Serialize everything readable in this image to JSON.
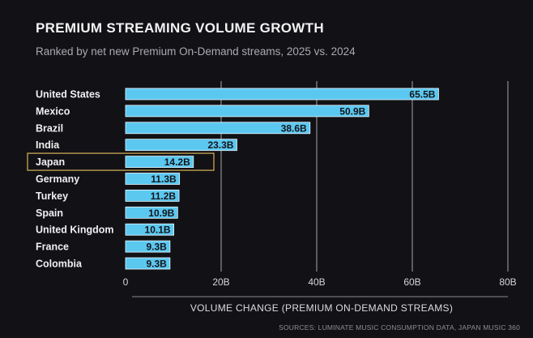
{
  "header": {
    "title": "PREMIUM STREAMING VOLUME GROWTH",
    "subtitle": "Ranked by net new Premium On-Demand streams, 2025 vs. 2024"
  },
  "footer": {
    "source": "SOURCES: LUMINATE MUSIC CONSUMPTION DATA, JAPAN MUSIC 360"
  },
  "colors": {
    "background": "#121216",
    "bar": "#5bc8f0",
    "highlight_outline": "#d9b25a",
    "grid": "#bfbfc4"
  },
  "chart_data": {
    "type": "bar",
    "orientation": "horizontal",
    "title": "PREMIUM STREAMING VOLUME GROWTH",
    "subtitle": "Ranked by net new Premium On-Demand streams, 2025 vs. 2024",
    "xlabel": "VOLUME CHANGE (PREMIUM ON-DEMAND STREAMS)",
    "ylabel": "",
    "categories": [
      "United States",
      "Mexico",
      "Brazil",
      "India",
      "Japan",
      "Germany",
      "Turkey",
      "Spain",
      "United Kingdom",
      "France",
      "Colombia"
    ],
    "values": [
      65.5,
      50.9,
      38.6,
      23.3,
      14.2,
      11.3,
      11.2,
      10.9,
      10.1,
      9.3,
      9.3
    ],
    "value_labels": [
      "65.5B",
      "50.9B",
      "38.6B",
      "23.3B",
      "14.2B",
      "11.3B",
      "11.2B",
      "10.9B",
      "10.1B",
      "9.3B",
      "9.3B"
    ],
    "xlim": [
      0,
      80
    ],
    "ticks": [
      0,
      20,
      40,
      60,
      80
    ],
    "tick_labels": [
      "0",
      "20B",
      "40B",
      "60B",
      "80B"
    ],
    "grid": true,
    "highlighted_category": "Japan"
  }
}
